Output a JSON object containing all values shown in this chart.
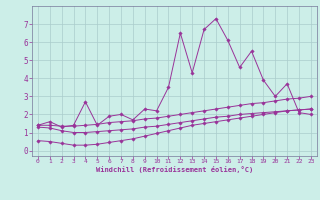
{
  "xlabel": "Windchill (Refroidissement éolien,°C)",
  "bg_color": "#cceee8",
  "grid_color": "#aacccc",
  "line_color": "#993399",
  "x_ticks": [
    0,
    1,
    2,
    3,
    4,
    5,
    6,
    7,
    8,
    9,
    10,
    11,
    12,
    13,
    14,
    15,
    16,
    17,
    18,
    19,
    20,
    21,
    22,
    23
  ],
  "y_ticks": [
    0,
    1,
    2,
    3,
    4,
    5,
    6,
    7
  ],
  "ylim": [
    -0.3,
    8.0
  ],
  "xlim": [
    -0.5,
    23.5
  ],
  "series1_x": [
    0,
    1,
    2,
    3,
    4,
    5,
    6,
    7,
    8,
    9,
    10,
    11,
    12,
    13,
    14,
    15,
    16,
    17,
    18,
    19,
    20,
    21,
    22,
    23
  ],
  "series1_y": [
    1.4,
    1.6,
    1.3,
    1.4,
    2.7,
    1.4,
    1.9,
    2.0,
    1.7,
    2.3,
    2.2,
    3.5,
    6.5,
    4.3,
    6.7,
    7.3,
    6.1,
    4.6,
    5.5,
    3.9,
    3.0,
    3.7,
    2.1,
    2.0
  ],
  "series2_x": [
    0,
    1,
    2,
    3,
    4,
    5,
    6,
    7,
    8,
    9,
    10,
    11,
    12,
    13,
    14,
    15,
    16,
    17,
    18,
    19,
    20,
    21,
    22,
    23
  ],
  "series2_y": [
    1.4,
    1.4,
    1.35,
    1.35,
    1.4,
    1.45,
    1.55,
    1.6,
    1.65,
    1.75,
    1.8,
    1.9,
    2.0,
    2.1,
    2.2,
    2.3,
    2.4,
    2.5,
    2.6,
    2.65,
    2.75,
    2.85,
    2.9,
    3.0
  ],
  "series3_x": [
    0,
    1,
    2,
    3,
    4,
    5,
    6,
    7,
    8,
    9,
    10,
    11,
    12,
    13,
    14,
    15,
    16,
    17,
    18,
    19,
    20,
    21,
    22,
    23
  ],
  "series3_y": [
    1.3,
    1.25,
    1.1,
    1.0,
    1.0,
    1.05,
    1.1,
    1.15,
    1.2,
    1.3,
    1.35,
    1.45,
    1.55,
    1.65,
    1.75,
    1.85,
    1.9,
    2.0,
    2.05,
    2.1,
    2.15,
    2.2,
    2.25,
    2.3
  ],
  "series4_x": [
    0,
    1,
    2,
    3,
    4,
    5,
    6,
    7,
    8,
    9,
    10,
    11,
    12,
    13,
    14,
    15,
    16,
    17,
    18,
    19,
    20,
    21,
    22,
    23
  ],
  "series4_y": [
    0.55,
    0.5,
    0.4,
    0.3,
    0.3,
    0.35,
    0.45,
    0.55,
    0.65,
    0.8,
    0.95,
    1.1,
    1.25,
    1.4,
    1.5,
    1.6,
    1.7,
    1.8,
    1.9,
    2.0,
    2.1,
    2.2,
    2.25,
    2.3
  ]
}
